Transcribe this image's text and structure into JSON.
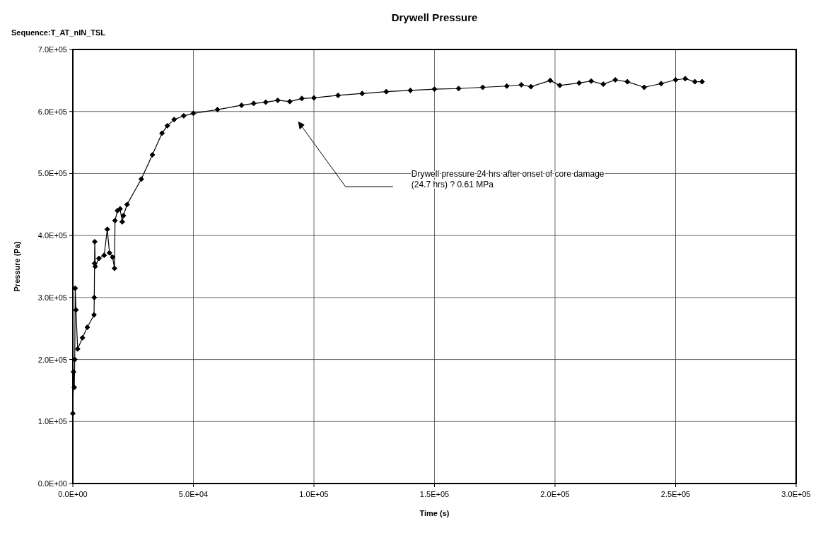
{
  "chart_data": {
    "type": "line",
    "title": "Drywell Pressure",
    "subtitle": "Sequence:T_AT_nIN_TSL",
    "xlabel": "Time (s)",
    "ylabel": "Pressure (Pa)",
    "xlim": [
      0,
      300000
    ],
    "ylim": [
      0,
      700000
    ],
    "xticks": [
      {
        "value": 0,
        "label": "0.0E+00"
      },
      {
        "value": 50000,
        "label": "5.0E+04"
      },
      {
        "value": 100000,
        "label": "1.0E+05"
      },
      {
        "value": 150000,
        "label": "1.5E+05"
      },
      {
        "value": 200000,
        "label": "2.0E+05"
      },
      {
        "value": 250000,
        "label": "2.5E+05"
      },
      {
        "value": 300000,
        "label": "3.0E+05"
      }
    ],
    "yticks": [
      {
        "value": 0,
        "label": "0.0E+00"
      },
      {
        "value": 100000,
        "label": "1.0E+05"
      },
      {
        "value": 200000,
        "label": "2.0E+05"
      },
      {
        "value": 300000,
        "label": "3.0E+05"
      },
      {
        "value": 400000,
        "label": "4.0E+05"
      },
      {
        "value": 500000,
        "label": "5.0E+05"
      },
      {
        "value": 600000,
        "label": "6.0E+05"
      },
      {
        "value": 700000,
        "label": "7.0E+05"
      }
    ],
    "grid": true,
    "marker": "diamond",
    "line_style": "solid",
    "annotations": [
      "Drywell pressure 24 hrs after onset of core damage\n(24.7 hrs) ? 0.61 MPa"
    ],
    "series": [
      {
        "color": "#000000",
        "x": [
          0,
          300,
          600,
          800,
          1000,
          1300,
          2000,
          4000,
          6000,
          8800,
          8900,
          9000,
          9100,
          9300,
          10800,
          13000,
          14300,
          15200,
          16500,
          17300,
          17500,
          18500,
          19600,
          20500,
          21000,
          22500,
          28400,
          33000,
          37000,
          39200,
          42000,
          46000,
          50000,
          60000,
          70000,
          75000,
          80000,
          85000,
          90000,
          95000,
          100000,
          110000,
          120000,
          130000,
          140000,
          150000,
          160000,
          170000,
          180000,
          186000,
          190000,
          198000,
          202000,
          210000,
          215000,
          220000,
          225000,
          230000,
          237000,
          244000,
          250000,
          254000,
          258000,
          261000
        ],
        "values": [
          113000,
          180000,
          155000,
          200000,
          315000,
          280000,
          217000,
          235000,
          252000,
          272000,
          300000,
          355000,
          390000,
          350000,
          363000,
          368000,
          410000,
          372000,
          365000,
          347000,
          424000,
          440000,
          443000,
          422000,
          432000,
          450000,
          491000,
          530000,
          565000,
          577000,
          587000,
          593000,
          597000,
          603000,
          610000,
          613000,
          615000,
          618000,
          616000,
          621000,
          622000,
          626000,
          629000,
          632000,
          634000,
          636000,
          637000,
          639000,
          641000,
          643000,
          640000,
          650000,
          642000,
          646000,
          649000,
          644000,
          651000,
          648000,
          639000,
          645000,
          651000,
          653000,
          648000,
          648000
        ]
      }
    ]
  }
}
